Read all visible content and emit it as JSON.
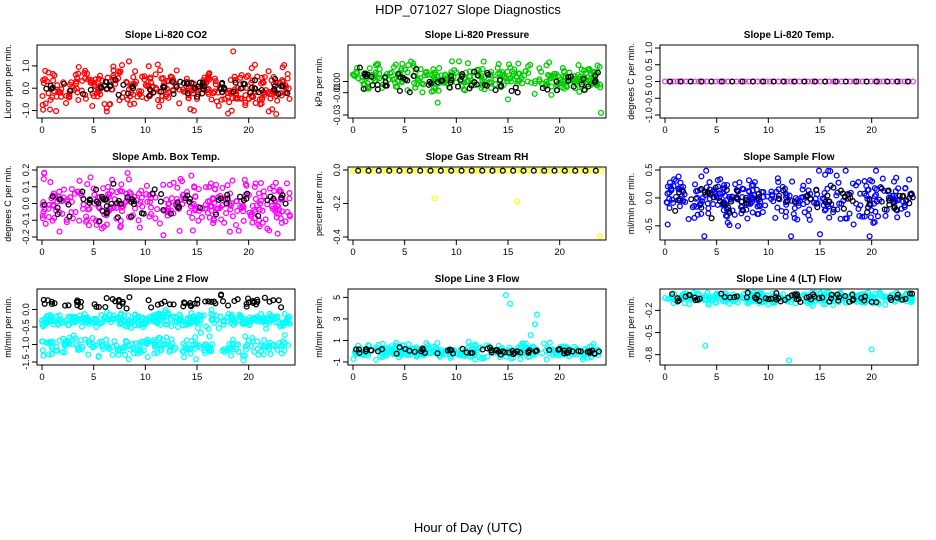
{
  "page": {
    "title": "HDP_071027  Slope Diagnostics",
    "xlabel": "Hour of Day (UTC)"
  },
  "chart_data": [
    {
      "type": "scatter",
      "title": "Slope Li-820 CO2",
      "ylabel": "Licor ppm per min.",
      "color": "#ff0000",
      "xlim": [
        0,
        24
      ],
      "ylim": [
        -1.2,
        1.8
      ],
      "xticks": [
        0,
        5,
        10,
        15,
        20
      ],
      "yticks": [
        -1.0,
        0.0,
        1.0
      ],
      "ytick_labels": [
        "-1.0",
        "0.0",
        "1.0"
      ],
      "band": {
        "center": 0.0,
        "spread": 0.45
      },
      "black_band": {
        "center": 0.05,
        "spread": 0.2
      },
      "outliers": [
        [
          18.5,
          1.65
        ],
        [
          20.3,
          0.9
        ],
        [
          20.6,
          1.05
        ],
        [
          19.8,
          0.5
        ],
        [
          7.6,
          0.75
        ]
      ]
    },
    {
      "type": "scatter",
      "title": "Slope Li-820 Pressure",
      "ylabel": "kPa per min.",
      "color": "#00cc00",
      "xlim": [
        0,
        24
      ],
      "ylim": [
        -0.03,
        0.03
      ],
      "xticks": [
        0,
        5,
        10,
        15,
        20
      ],
      "yticks": [
        -0.03,
        -0.01,
        0.0
      ],
      "ytick_labels": [
        "-0.03",
        "-0.01",
        "0.00"
      ],
      "band": {
        "center": 0.003,
        "spread": 0.006
      },
      "black_band": {
        "center": 0.0,
        "spread": 0.005
      },
      "outliers": [
        [
          24.0,
          -0.028
        ],
        [
          8.2,
          -0.019
        ],
        [
          15.0,
          -0.016
        ],
        [
          19.2,
          -0.012
        ],
        [
          16.0,
          0.016
        ],
        [
          20.3,
          0.012
        ]
      ]
    },
    {
      "type": "scatter",
      "title": "Slope Li-820 Temp.",
      "ylabel": "degrees C per min.",
      "color": "#e040e0",
      "xlim": [
        0,
        24
      ],
      "ylim": [
        -1.0,
        1.0
      ],
      "xticks": [
        0,
        5,
        10,
        15,
        20
      ],
      "yticks": [
        -1.0,
        -0.5,
        0.0,
        0.5,
        1.0
      ],
      "ytick_labels": [
        "-1.0",
        "-0.5",
        "0.0",
        "0.5",
        "1.0"
      ],
      "band": {
        "center": 0.0,
        "spread": 0.0
      },
      "black_band": {
        "center": 0.0,
        "spread": 0.0
      },
      "outliers": []
    },
    {
      "type": "scatter",
      "title": "Slope Amb. Box Temp.",
      "ylabel": "degrees C per min.",
      "color": "#ff00ff",
      "xlim": [
        0,
        24
      ],
      "ylim": [
        -0.2,
        0.2
      ],
      "xticks": [
        0,
        5,
        10,
        15,
        20
      ],
      "yticks": [
        -0.2,
        -0.1,
        0.0,
        0.1,
        0.2
      ],
      "ytick_labels": [
        "-0.2",
        "-0.1",
        "0.0",
        "0.1",
        "0.2"
      ],
      "band": {
        "center": 0.0,
        "spread": 0.08
      },
      "black_band": {
        "center": 0.0,
        "spread": 0.04
      },
      "outliers": [
        [
          0.2,
          0.18
        ],
        [
          22.8,
          -0.18
        ],
        [
          21.8,
          -0.15
        ]
      ]
    },
    {
      "type": "scatter",
      "title": "Slope Gas Stream RH",
      "ylabel": "percent per min.",
      "color": "#ffff00",
      "xlim": [
        0,
        24
      ],
      "ylim": [
        -0.4,
        0.0
      ],
      "xticks": [
        0,
        5,
        10,
        15,
        20
      ],
      "yticks": [
        -0.4,
        -0.2,
        0.0
      ],
      "ytick_labels": [
        "-0.4",
        "-0.2",
        "0.0"
      ],
      "band": {
        "center": 0.0,
        "spread": 0.0
      },
      "black_band": {
        "center": 0.0,
        "spread": 0.0
      },
      "outliers": [
        [
          7.9,
          -0.17
        ],
        [
          15.9,
          -0.19
        ],
        [
          23.9,
          -0.4
        ]
      ]
    },
    {
      "type": "scatter",
      "title": "Slope Sample Flow",
      "ylabel": "ml/min per min.",
      "color": "#0000ff",
      "xlim": [
        0,
        24
      ],
      "ylim": [
        -0.7,
        0.5
      ],
      "xticks": [
        0,
        5,
        10,
        15,
        20
      ],
      "yticks": [
        -0.5,
        0.0,
        0.5
      ],
      "ytick_labels": [
        "-0.5",
        "0.0",
        "0.5"
      ],
      "band": {
        "center": 0.0,
        "spread": 0.2
      },
      "black_band": {
        "center": -0.05,
        "spread": 0.12
      },
      "outliers": [
        [
          3.8,
          -0.75
        ],
        [
          12.2,
          -0.7
        ],
        [
          15.0,
          -0.65
        ],
        [
          19.8,
          -0.75
        ],
        [
          14.9,
          0.5
        ],
        [
          16.0,
          0.48
        ]
      ]
    },
    {
      "type": "scatter",
      "title": "Slope Line 2 Flow",
      "ylabel": "ml/min per min.",
      "color": "#00ffff",
      "xlim": [
        0,
        24
      ],
      "ylim": [
        -1.5,
        0.5
      ],
      "xticks": [
        0,
        5,
        10,
        15,
        20
      ],
      "yticks": [
        -1.5,
        -1.0,
        -0.5,
        0.0
      ],
      "ytick_labels": [
        "-1.5",
        "-1.0",
        "-0.5",
        "0.0"
      ],
      "band": {
        "center": -0.3,
        "spread": 0.1
      },
      "band2": {
        "center": -1.05,
        "spread": 0.14
      },
      "black_band": {
        "center": 0.2,
        "spread": 0.08
      },
      "outliers": [
        [
          19.5,
          -1.45
        ],
        [
          14.9,
          -1.42
        ]
      ]
    },
    {
      "type": "scatter",
      "title": "Slope Line 3 Flow",
      "ylabel": "ml/min per min.",
      "color": "#00ffff",
      "xlim": [
        0,
        24
      ],
      "ylim": [
        -1.0,
        5.5
      ],
      "xticks": [
        0,
        5,
        10,
        15,
        20
      ],
      "yticks": [
        -1,
        1,
        3,
        5
      ],
      "ytick_labels": [
        "-1",
        "1",
        "3",
        "5"
      ],
      "band": {
        "center": 0.0,
        "spread": 0.35
      },
      "black_band": {
        "center": 0.0,
        "spread": 0.15
      },
      "outliers": [
        [
          14.8,
          5.2
        ],
        [
          15.2,
          4.4
        ],
        [
          17.8,
          3.4
        ],
        [
          17.6,
          2.5
        ],
        [
          17.2,
          1.5
        ],
        [
          15.5,
          -0.6
        ]
      ]
    },
    {
      "type": "scatter",
      "title": "Slope Line 4 (LT) Flow",
      "ylabel": "ml/min per min.",
      "color": "#00ffff",
      "xlim": [
        0,
        24
      ],
      "ylim": [
        -0.9,
        0.05
      ],
      "xticks": [
        0,
        5,
        10,
        15,
        20
      ],
      "yticks": [
        -0.8,
        -0.5,
        -0.2
      ],
      "ytick_labels": [
        "-0.8",
        "-0.5",
        "-0.2"
      ],
      "band": {
        "center": -0.03,
        "spread": 0.04
      },
      "black_band": {
        "center": -0.02,
        "spread": 0.04
      },
      "outliers": [
        [
          3.9,
          -0.68
        ],
        [
          12.0,
          -0.88
        ],
        [
          20.0,
          -0.73
        ]
      ]
    }
  ]
}
